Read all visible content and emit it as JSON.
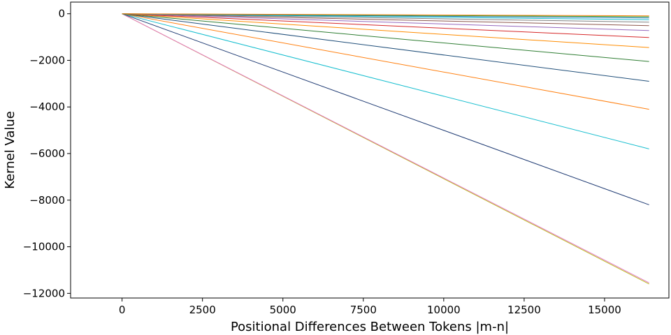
{
  "chart_data": {
    "type": "line",
    "title": "",
    "xlabel": "Positional Differences Between Tokens |m-n|",
    "ylabel": "Kernel Value",
    "xlim": [
      -1600,
      17000
    ],
    "ylim": [
      -12200,
      500
    ],
    "grid": false,
    "x_ticks": [
      0,
      2500,
      5000,
      7500,
      10000,
      12500,
      15000
    ],
    "y_ticks": [
      0,
      -2000,
      -4000,
      -6000,
      -8000,
      -10000,
      -12000
    ],
    "x_tick_labels": [
      "0",
      "2500",
      "5000",
      "7500",
      "10000",
      "12500",
      "15000"
    ],
    "y_tick_labels": [
      "0",
      "−2000",
      "−4000",
      "−6000",
      "−8000",
      "−10000",
      "−12000"
    ],
    "series": [
      {
        "color": "#bcbd22",
        "x": [
          0,
          16384
        ],
        "y": [
          0,
          -11600
        ]
      },
      {
        "color": "#e377c2",
        "x": [
          0,
          16384
        ],
        "y": [
          0,
          -11550
        ]
      },
      {
        "color": "#1f3b73",
        "x": [
          0,
          16384
        ],
        "y": [
          0,
          -8200
        ]
      },
      {
        "color": "#17becf",
        "x": [
          0,
          16384
        ],
        "y": [
          0,
          -5800
        ]
      },
      {
        "color": "#ff7f0e",
        "x": [
          0,
          16384
        ],
        "y": [
          0,
          -4100
        ]
      },
      {
        "color": "#1f4e79",
        "x": [
          0,
          16384
        ],
        "y": [
          0,
          -2900
        ]
      },
      {
        "color": "#2e7d32",
        "x": [
          0,
          16384
        ],
        "y": [
          0,
          -2050
        ]
      },
      {
        "color": "#ff8c00",
        "x": [
          0,
          16384
        ],
        "y": [
          0,
          -1450
        ]
      },
      {
        "color": "#d62728",
        "x": [
          0,
          16384
        ],
        "y": [
          0,
          -1020
        ]
      },
      {
        "color": "#9467bd",
        "x": [
          0,
          16384
        ],
        "y": [
          0,
          -720
        ]
      },
      {
        "color": "#8c564b",
        "x": [
          0,
          16384
        ],
        "y": [
          0,
          -510
        ]
      },
      {
        "color": "#7f7f7f",
        "x": [
          0,
          16384
        ],
        "y": [
          0,
          -360
        ]
      },
      {
        "color": "#17becf",
        "x": [
          0,
          16384
        ],
        "y": [
          0,
          -255
        ]
      },
      {
        "color": "#1f77b4",
        "x": [
          0,
          16384
        ],
        "y": [
          0,
          -180
        ]
      },
      {
        "color": "#2ca02c",
        "x": [
          0,
          16384
        ],
        "y": [
          0,
          -128
        ]
      },
      {
        "color": "#ff7f0e",
        "x": [
          0,
          16384
        ],
        "y": [
          0,
          -90
        ]
      }
    ]
  }
}
